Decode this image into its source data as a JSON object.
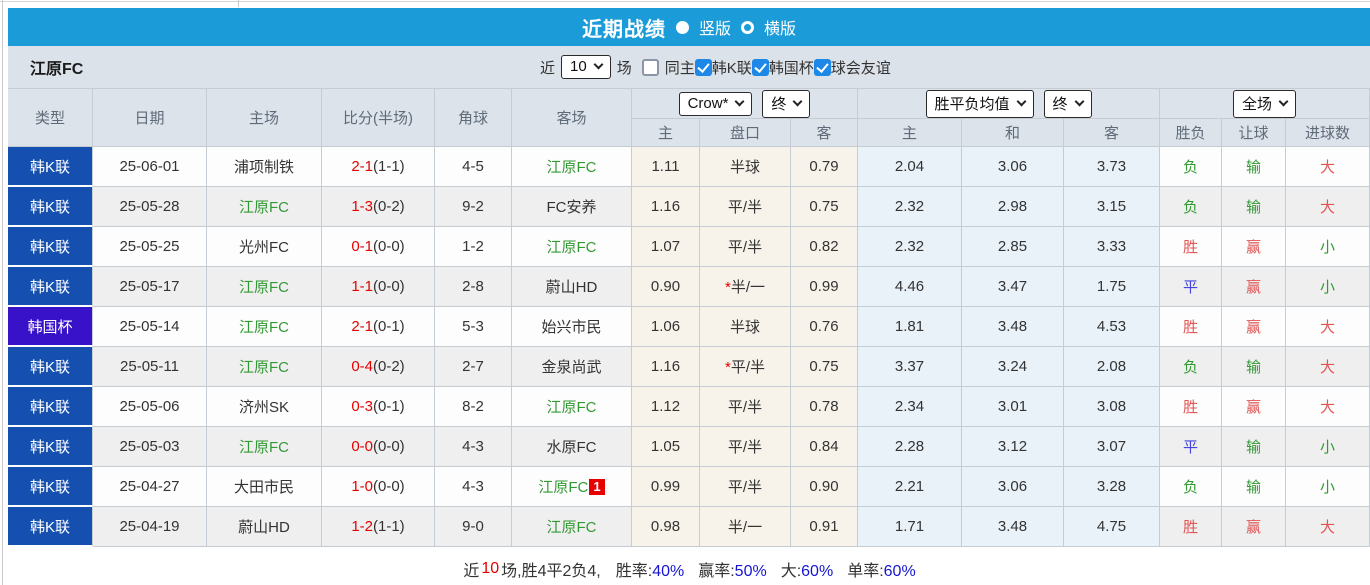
{
  "colors": {
    "topbar_blue": "#1b9cd9",
    "league_blue": "#1550b0",
    "cup_purple": "#3812c8",
    "self_team_green": "#339933",
    "score_red": "#e60000",
    "win_red": "#e25555",
    "draw_blue": "#4444dd",
    "loss_green": "#339933",
    "stat_blue": "#1515d0",
    "checkbox_blue": "#1d88e8"
  },
  "title_bar": {
    "title": "近期战绩",
    "vertical_label": "竖版",
    "horizontal_label": "横版",
    "selected_layout": "竖版"
  },
  "filter_bar": {
    "team_name": "江原FC",
    "recent_label": "近",
    "recent_count": "10",
    "unit_label": "场",
    "same_venue_label": "同主",
    "same_venue_checked": false,
    "league_filters": [
      {
        "label": "韩K联",
        "checked": true
      },
      {
        "label": "韩国杯",
        "checked": true
      },
      {
        "label": "球会友谊",
        "checked": true
      }
    ]
  },
  "table": {
    "dropdowns": {
      "bookmaker": "Crow*",
      "bookmaker_time": "终",
      "avg": "胜平负均值",
      "avg_time": "终",
      "scope": "全场"
    },
    "col_headers": {
      "type": "类型",
      "date": "日期",
      "home": "主场",
      "score": "比分(半场)",
      "corner": "角球",
      "away": "客场",
      "ah_home": "主",
      "ah_line": "盘口",
      "ah_away": "客",
      "odds_home": "主",
      "odds_draw": "和",
      "odds_away": "客",
      "result_wdl": "胜负",
      "result_handicap": "让球",
      "result_goals": "进球数"
    },
    "rows": [
      {
        "type": "韩K联",
        "cup": false,
        "date": "25-06-01",
        "home": "浦项制铁",
        "home_self": false,
        "score": "2-1",
        "half": "(1-1)",
        "corner": "4-5",
        "away": "江原FC",
        "away_self": true,
        "away_red": "",
        "ah_home": "1.11",
        "star": false,
        "line": "半球",
        "ah_away": "0.79",
        "o_home": "2.04",
        "o_draw": "3.06",
        "o_away": "3.73",
        "r_wdl": "负",
        "r_handicap": "输",
        "r_goals": "大"
      },
      {
        "type": "韩K联",
        "cup": false,
        "date": "25-05-28",
        "home": "江原FC",
        "home_self": true,
        "score": "1-3",
        "half": "(0-2)",
        "corner": "9-2",
        "away": "FC安养",
        "away_self": false,
        "away_red": "",
        "ah_home": "1.16",
        "star": false,
        "line": "平/半",
        "ah_away": "0.75",
        "o_home": "2.32",
        "o_draw": "2.98",
        "o_away": "3.15",
        "r_wdl": "负",
        "r_handicap": "输",
        "r_goals": "大"
      },
      {
        "type": "韩K联",
        "cup": false,
        "date": "25-05-25",
        "home": "光州FC",
        "home_self": false,
        "score": "0-1",
        "half": "(0-0)",
        "corner": "1-2",
        "away": "江原FC",
        "away_self": true,
        "away_red": "",
        "ah_home": "1.07",
        "star": false,
        "line": "平/半",
        "ah_away": "0.82",
        "o_home": "2.32",
        "o_draw": "2.85",
        "o_away": "3.33",
        "r_wdl": "胜",
        "r_handicap": "赢",
        "r_goals": "小"
      },
      {
        "type": "韩K联",
        "cup": false,
        "date": "25-05-17",
        "home": "江原FC",
        "home_self": true,
        "score": "1-1",
        "half": "(0-0)",
        "corner": "2-8",
        "away": "蔚山HD",
        "away_self": false,
        "away_red": "",
        "ah_home": "0.90",
        "star": true,
        "line": "半/一",
        "ah_away": "0.99",
        "o_home": "4.46",
        "o_draw": "3.47",
        "o_away": "1.75",
        "r_wdl": "平",
        "r_handicap": "赢",
        "r_goals": "小"
      },
      {
        "type": "韩国杯",
        "cup": true,
        "date": "25-05-14",
        "home": "江原FC",
        "home_self": true,
        "score": "2-1",
        "half": "(0-1)",
        "corner": "5-3",
        "away": "始兴市民",
        "away_self": false,
        "away_red": "",
        "ah_home": "1.06",
        "star": false,
        "line": "半球",
        "ah_away": "0.76",
        "o_home": "1.81",
        "o_draw": "3.48",
        "o_away": "4.53",
        "r_wdl": "胜",
        "r_handicap": "赢",
        "r_goals": "大"
      },
      {
        "type": "韩K联",
        "cup": false,
        "date": "25-05-11",
        "home": "江原FC",
        "home_self": true,
        "score": "0-4",
        "half": "(0-2)",
        "corner": "2-7",
        "away": "金泉尚武",
        "away_self": false,
        "away_red": "",
        "ah_home": "1.16",
        "star": true,
        "line": "平/半",
        "ah_away": "0.75",
        "o_home": "3.37",
        "o_draw": "3.24",
        "o_away": "2.08",
        "r_wdl": "负",
        "r_handicap": "输",
        "r_goals": "大"
      },
      {
        "type": "韩K联",
        "cup": false,
        "date": "25-05-06",
        "home": "济州SK",
        "home_self": false,
        "score": "0-3",
        "half": "(0-1)",
        "corner": "8-2",
        "away": "江原FC",
        "away_self": true,
        "away_red": "",
        "ah_home": "1.12",
        "star": false,
        "line": "平/半",
        "ah_away": "0.78",
        "o_home": "2.34",
        "o_draw": "3.01",
        "o_away": "3.08",
        "r_wdl": "胜",
        "r_handicap": "赢",
        "r_goals": "大"
      },
      {
        "type": "韩K联",
        "cup": false,
        "date": "25-05-03",
        "home": "江原FC",
        "home_self": true,
        "score": "0-0",
        "half": "(0-0)",
        "corner": "4-3",
        "away": "水原FC",
        "away_self": false,
        "away_red": "",
        "ah_home": "1.05",
        "star": false,
        "line": "平/半",
        "ah_away": "0.84",
        "o_home": "2.28",
        "o_draw": "3.12",
        "o_away": "3.07",
        "r_wdl": "平",
        "r_handicap": "输",
        "r_goals": "小"
      },
      {
        "type": "韩K联",
        "cup": false,
        "date": "25-04-27",
        "home": "大田市民",
        "home_self": false,
        "score": "1-0",
        "half": "(0-0)",
        "corner": "4-3",
        "away": "江原FC",
        "away_self": true,
        "away_red": "1",
        "ah_home": "0.99",
        "star": false,
        "line": "平/半",
        "ah_away": "0.90",
        "o_home": "2.21",
        "o_draw": "3.06",
        "o_away": "3.28",
        "r_wdl": "负",
        "r_handicap": "输",
        "r_goals": "小"
      },
      {
        "type": "韩K联",
        "cup": false,
        "date": "25-04-19",
        "home": "蔚山HD",
        "home_self": false,
        "score": "1-2",
        "half": "(1-1)",
        "corner": "9-0",
        "away": "江原FC",
        "away_self": true,
        "away_red": "",
        "ah_home": "0.98",
        "star": false,
        "line": "半/一",
        "ah_away": "0.91",
        "o_home": "1.71",
        "o_draw": "3.48",
        "o_away": "4.75",
        "r_wdl": "胜",
        "r_handicap": "赢",
        "r_goals": "大"
      }
    ]
  },
  "summary": {
    "recent_label": "近",
    "recent_count": "10",
    "record_text": "场,胜4平2负4,",
    "stats": [
      {
        "label": "胜率:",
        "value": "40%"
      },
      {
        "label": "赢率:",
        "value": "50%"
      },
      {
        "label": "大:",
        "value": "60%"
      },
      {
        "label": "单率:",
        "value": "60%"
      }
    ]
  }
}
